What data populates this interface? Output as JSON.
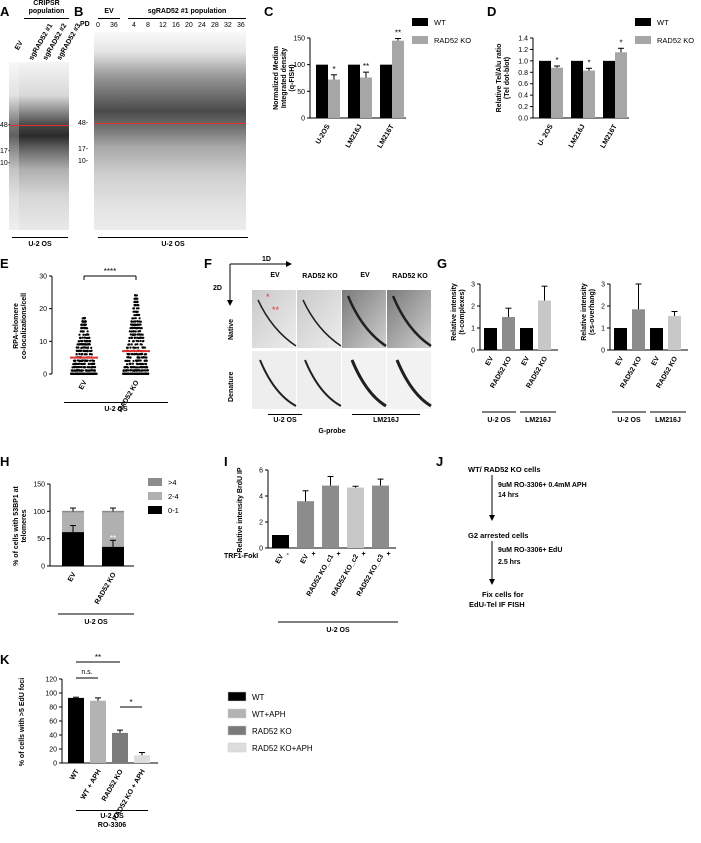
{
  "panels": {
    "A": {
      "letter": "A",
      "header": "CRIPSR population",
      "lanes": [
        "EV",
        "sgRAD52 #1",
        "sgRAD52 #2",
        "sgRAD52 #3"
      ],
      "markers": [
        "48-",
        "17-",
        "10-"
      ],
      "cell_line": "U-2 OS"
    },
    "B": {
      "letter": "B",
      "ev_label": "EV",
      "sg_label": "sgRAD52 #1 population",
      "pd_label": "PD",
      "pd_values": [
        "0",
        "36",
        "4",
        "8",
        "12",
        "16",
        "20",
        "24",
        "28",
        "32",
        "36"
      ],
      "markers": [
        "48-",
        "17-",
        "10-"
      ],
      "cell_line": "U-2 OS"
    },
    "C": {
      "letter": "C"
    },
    "D": {
      "letter": "D"
    },
    "E": {
      "letter": "E",
      "sig": "****",
      "cell_line": "U-2 OS"
    },
    "F": {
      "letter": "F",
      "dim1": "1D",
      "dim2": "2D",
      "cols": [
        "EV",
        "RAD52 KO",
        "EV",
        "RAD52 KO"
      ],
      "rows": [
        "Native",
        "Denature"
      ],
      "cell_lines": [
        "U-2 OS",
        "LM216J"
      ],
      "probe": "G-probe",
      "stars": [
        "*",
        "**"
      ]
    },
    "G": {
      "letter": "G",
      "cell_lines": [
        "U-2 OS",
        "LM216J"
      ]
    },
    "H": {
      "letter": "H",
      "cell_line": "U-2 OS"
    },
    "I": {
      "letter": "I",
      "row_label": "TRF1-FokI",
      "cell_line": "U-2 OS"
    },
    "J": {
      "letter": "J",
      "steps": [
        "WT/ RAD52 KO cells",
        "G2 arrested cells",
        "Fix cells for"
      ],
      "step_last_line": "EdU-Tel  IF FISH",
      "treatments": [
        {
          "line1": "9uM RO-3306+ 0.4mM APH",
          "line2": "14 hrs"
        },
        {
          "line1": "9uM RO-3306+ EdU",
          "line2": "2.5 hrs"
        }
      ]
    },
    "K": {
      "letter": "K",
      "cell_line": "U-2 OS",
      "drug": "RO-3306",
      "ns": "n.s.",
      "sig1": "**",
      "sig2": "*"
    }
  },
  "chart_data": [
    {
      "panel": "C",
      "type": "bar",
      "ylabel": "Normalized Median Integrated density (q-FISH)",
      "ylim": [
        0,
        150
      ],
      "yticks": [
        "0",
        "50",
        "100",
        "150"
      ],
      "categories": [
        "U-2OS",
        "LM216J",
        "LM216T"
      ],
      "series": [
        {
          "name": "WT",
          "color": "#000000",
          "values": [
            100,
            100,
            100
          ],
          "errors": [
            0,
            0,
            0
          ]
        },
        {
          "name": "RAD52 KO",
          "color": "#a6a6a6",
          "values": [
            72,
            76,
            145
          ],
          "errors": [
            9,
            10,
            4
          ]
        }
      ],
      "sig": [
        "*",
        "**",
        "**"
      ],
      "legend": "top-right"
    },
    {
      "panel": "D",
      "type": "bar",
      "ylabel": "Relative Tel/Alu ratio (Tel dot-blot)",
      "ylim": [
        0,
        1.4
      ],
      "yticks": [
        "0.0",
        "0.2",
        "0.4",
        "0.6",
        "0.8",
        "1.0",
        "1.2",
        "1.4"
      ],
      "categories": [
        "U- 2OS",
        "LM216J",
        "LM216T"
      ],
      "series": [
        {
          "name": "WT",
          "color": "#000000",
          "values": [
            1.0,
            1.0,
            1.0
          ],
          "errors": [
            0,
            0,
            0
          ]
        },
        {
          "name": "RAD52 KO",
          "color": "#a6a6a6",
          "values": [
            0.88,
            0.83,
            1.15
          ],
          "errors": [
            0.03,
            0.04,
            0.07
          ]
        }
      ],
      "sig": [
        "*",
        "*",
        "*"
      ],
      "legend": "top-right"
    },
    {
      "panel": "E",
      "type": "scatter",
      "ylabel": "RPA-telomere co-localizations/cell",
      "ylim": [
        0,
        30
      ],
      "yticks": [
        "0",
        "10",
        "20",
        "30"
      ],
      "categories": [
        "EV",
        "RAD52 KO"
      ],
      "medians": [
        5,
        7
      ],
      "max": [
        17,
        24
      ]
    },
    {
      "panel": "G1",
      "type": "bar",
      "ylabel": "Relative intensity (t-complexes)",
      "ylim": [
        0,
        3
      ],
      "yticks": [
        "0",
        "1",
        "2",
        "3"
      ],
      "categories": [
        "EV",
        "RAD52 KO",
        "EV",
        "RAD52 KO"
      ],
      "values": [
        1.0,
        1.5,
        1.0,
        2.25
      ],
      "errors": [
        0,
        0.4,
        0,
        0.65
      ],
      "colors": [
        "#000000",
        "#8c8c8c",
        "#000000",
        "#c8c8c8"
      ]
    },
    {
      "panel": "G2",
      "type": "bar",
      "ylabel": "Relative intensity (ss-overhang)",
      "ylim": [
        0,
        3
      ],
      "yticks": [
        "0",
        "1",
        "2",
        "3"
      ],
      "categories": [
        "EV",
        "RAD52 KO",
        "EV",
        "RAD52 KO"
      ],
      "values": [
        1.0,
        1.85,
        1.0,
        1.55
      ],
      "errors": [
        0,
        1.15,
        0,
        0.2
      ],
      "colors": [
        "#000000",
        "#8c8c8c",
        "#000000",
        "#c8c8c8"
      ]
    },
    {
      "panel": "H",
      "type": "stacked-bar",
      "ylabel": "% of cells with 53BP1 at telomeres",
      "ylim": [
        0,
        150
      ],
      "yticks": [
        "0",
        "50",
        "100",
        "150"
      ],
      "categories": [
        "EV",
        "RAD52 KO"
      ],
      "series": [
        {
          "name": "0-1",
          "color": "#000000",
          "values": [
            62,
            35
          ],
          "errors": [
            12,
            12
          ]
        },
        {
          "name": "2-4",
          "color": "#b0b0b0",
          "values": [
            38,
            65
          ],
          "errors": [
            0,
            0
          ]
        },
        {
          "name": ">4",
          "color": "#8c8c8c",
          "values": [
            6,
            6
          ],
          "errors": [
            6,
            6
          ]
        }
      ],
      "sig": [
        "",
        "**"
      ],
      "legend": "right"
    },
    {
      "panel": "I",
      "type": "bar",
      "ylabel": "Relative intensity BrdU IP",
      "ylim": [
        0,
        6
      ],
      "yticks": [
        "0",
        "2",
        "4",
        "6"
      ],
      "categories": [
        "EV",
        "EV",
        "RAD52 KO_c1",
        "RAD52 KO_c2",
        "RAD52 KO_c3"
      ],
      "trf1": [
        "-",
        "+",
        "+",
        "+",
        "+"
      ],
      "values": [
        1.0,
        3.6,
        4.8,
        4.65,
        4.8
      ],
      "errors": [
        0,
        0.8,
        0.7,
        0.1,
        0.5
      ],
      "colors": [
        "#000000",
        "#8c8c8c",
        "#8c8c8c",
        "#c8c8c8",
        "#8c8c8c"
      ]
    },
    {
      "panel": "K",
      "type": "bar",
      "ylabel": "% of cells with >5 EdU foci",
      "ylim": [
        0,
        120
      ],
      "yticks": [
        "0",
        "20",
        "40",
        "60",
        "80",
        "100",
        "120"
      ],
      "categories": [
        "WT",
        "WT + APH",
        "RAD52 KO",
        "RAD52 KO + APH"
      ],
      "series_names": [
        "WT",
        "WT+APH",
        "RAD52 KO",
        "RAD52 KO+APH"
      ],
      "values": [
        93,
        89,
        43,
        11
      ],
      "errors": [
        1,
        4,
        4,
        4
      ],
      "colors": [
        "#000000",
        "#b3b3b3",
        "#7a7a7a",
        "#dddddd"
      ]
    }
  ]
}
